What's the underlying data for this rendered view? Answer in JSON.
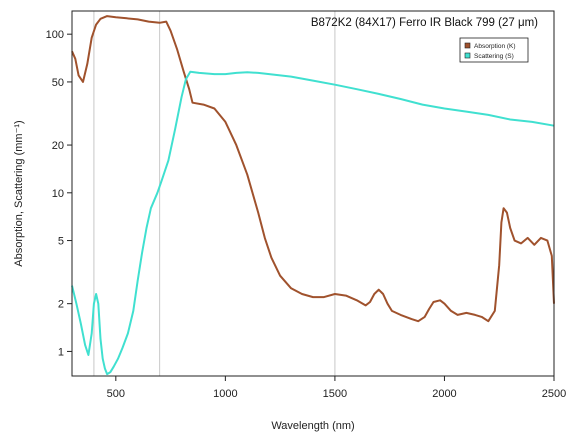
{
  "chart_data": {
    "type": "line",
    "title": "B872K2 (84X17) Ferro IR Black 799 (27 μm)",
    "xlabel": "Wavelength (nm)",
    "ylabel": "Absorption, Scattering (mm⁻¹)",
    "xlim": [
      300,
      2500
    ],
    "ylim": [
      0.7,
      140
    ],
    "y_scale": "log",
    "x_ticks": [
      500,
      1000,
      1500,
      2000,
      2500
    ],
    "y_ticks": [
      1,
      2,
      5,
      10,
      20,
      50,
      100
    ],
    "x_tick_labels": [
      "500",
      "1000",
      "1500",
      "2000",
      "2500"
    ],
    "y_tick_labels": [
      "1",
      "2",
      "5",
      "10",
      "20",
      "50",
      "100"
    ],
    "vertical_reference_lines": [
      400,
      700,
      1500
    ],
    "legend": {
      "placement": "top-right"
    },
    "series": [
      {
        "name": "Absorption (K)",
        "color": "#a0522d",
        "points": [
          [
            300,
            78
          ],
          [
            315,
            70
          ],
          [
            330,
            55
          ],
          [
            350,
            50
          ],
          [
            370,
            65
          ],
          [
            390,
            95
          ],
          [
            410,
            115
          ],
          [
            430,
            125
          ],
          [
            460,
            130
          ],
          [
            500,
            128
          ],
          [
            550,
            126
          ],
          [
            600,
            124
          ],
          [
            650,
            120
          ],
          [
            700,
            118
          ],
          [
            730,
            120
          ],
          [
            750,
            105
          ],
          [
            780,
            80
          ],
          [
            810,
            58
          ],
          [
            835,
            45
          ],
          [
            850,
            37
          ],
          [
            900,
            36
          ],
          [
            950,
            34
          ],
          [
            1000,
            28
          ],
          [
            1050,
            20
          ],
          [
            1100,
            13
          ],
          [
            1150,
            7.5
          ],
          [
            1180,
            5.2
          ],
          [
            1210,
            3.9
          ],
          [
            1250,
            3.0
          ],
          [
            1300,
            2.5
          ],
          [
            1350,
            2.3
          ],
          [
            1400,
            2.2
          ],
          [
            1450,
            2.2
          ],
          [
            1500,
            2.3
          ],
          [
            1550,
            2.25
          ],
          [
            1600,
            2.1
          ],
          [
            1640,
            1.95
          ],
          [
            1660,
            2.05
          ],
          [
            1680,
            2.3
          ],
          [
            1700,
            2.45
          ],
          [
            1720,
            2.3
          ],
          [
            1740,
            2.0
          ],
          [
            1760,
            1.8
          ],
          [
            1800,
            1.7
          ],
          [
            1850,
            1.6
          ],
          [
            1880,
            1.55
          ],
          [
            1910,
            1.65
          ],
          [
            1930,
            1.85
          ],
          [
            1950,
            2.05
          ],
          [
            1980,
            2.1
          ],
          [
            2000,
            2.0
          ],
          [
            2030,
            1.8
          ],
          [
            2060,
            1.7
          ],
          [
            2100,
            1.75
          ],
          [
            2140,
            1.7
          ],
          [
            2170,
            1.65
          ],
          [
            2200,
            1.55
          ],
          [
            2230,
            1.8
          ],
          [
            2250,
            3.5
          ],
          [
            2260,
            6.5
          ],
          [
            2270,
            8.0
          ],
          [
            2285,
            7.5
          ],
          [
            2300,
            6.0
          ],
          [
            2320,
            5.0
          ],
          [
            2350,
            4.8
          ],
          [
            2380,
            5.2
          ],
          [
            2410,
            4.7
          ],
          [
            2440,
            5.2
          ],
          [
            2470,
            5.0
          ],
          [
            2490,
            4.0
          ],
          [
            2500,
            2.0
          ]
        ]
      },
      {
        "name": "Scattering (S)",
        "color": "#40e0d0",
        "points": [
          [
            300,
            2.6
          ],
          [
            320,
            2.0
          ],
          [
            340,
            1.5
          ],
          [
            360,
            1.1
          ],
          [
            375,
            0.95
          ],
          [
            390,
            1.3
          ],
          [
            400,
            2.0
          ],
          [
            410,
            2.3
          ],
          [
            420,
            2.0
          ],
          [
            430,
            1.2
          ],
          [
            440,
            0.9
          ],
          [
            450,
            0.78
          ],
          [
            460,
            0.72
          ],
          [
            475,
            0.74
          ],
          [
            490,
            0.8
          ],
          [
            510,
            0.9
          ],
          [
            530,
            1.05
          ],
          [
            555,
            1.3
          ],
          [
            580,
            1.8
          ],
          [
            600,
            2.8
          ],
          [
            620,
            4.2
          ],
          [
            640,
            6.0
          ],
          [
            660,
            8.0
          ],
          [
            690,
            10
          ],
          [
            710,
            12
          ],
          [
            740,
            16
          ],
          [
            770,
            25
          ],
          [
            800,
            40
          ],
          [
            820,
            52
          ],
          [
            840,
            58
          ],
          [
            880,
            57
          ],
          [
            950,
            56
          ],
          [
            1000,
            56
          ],
          [
            1050,
            57
          ],
          [
            1100,
            57.5
          ],
          [
            1150,
            57
          ],
          [
            1200,
            56
          ],
          [
            1300,
            54
          ],
          [
            1400,
            51
          ],
          [
            1500,
            48
          ],
          [
            1600,
            45
          ],
          [
            1700,
            42
          ],
          [
            1800,
            39
          ],
          [
            1900,
            36
          ],
          [
            2000,
            34
          ],
          [
            2100,
            32.5
          ],
          [
            2200,
            31
          ],
          [
            2300,
            29
          ],
          [
            2400,
            28
          ],
          [
            2500,
            26.5
          ]
        ]
      }
    ]
  }
}
